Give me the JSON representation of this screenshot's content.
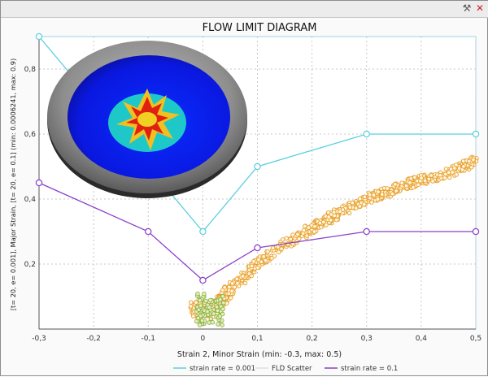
{
  "window": {
    "tools_icon": "tools-icon",
    "close_icon": "close-icon"
  },
  "colors": {
    "line_low": "#5ccfe0",
    "scatter": "#e8a030",
    "line_high": "#8a40c8",
    "grid": "#c8c8c8"
  },
  "chart_data": {
    "type": "line",
    "title": "FLOW LIMIT DIAGRAM",
    "xlabel": "Strain 2, Minor Strain (min: -0.3, max: 0.5)",
    "ylabel": "[t= 20, e= 0.001], Major Strain, [t= 20, e= 0.1] (min: 0.0006241, max: 0.9)",
    "xlim": [
      -0.3,
      0.5
    ],
    "ylim": [
      0,
      0.9
    ],
    "x_ticks": [
      "-0,3",
      "-0,2",
      "-0,1",
      "0",
      "0,1",
      "0,2",
      "0,3",
      "0,4",
      "0,5"
    ],
    "y_ticks": [
      "0,2",
      "0,4",
      "0,6",
      "0,8"
    ],
    "grid": true,
    "legend_position": "bottom",
    "series": [
      {
        "name": "strain rate = 0.001",
        "kind": "line",
        "color": "#5ccfe0",
        "x": [
          -0.3,
          0.0,
          0.1,
          0.3,
          0.5
        ],
        "y": [
          0.9,
          0.3,
          0.5,
          0.6,
          0.6
        ]
      },
      {
        "name": "FLD Scatter",
        "kind": "scatter",
        "color": "#e8a030",
        "band": [
          [
            -0.02,
            0.06
          ],
          [
            0.02,
            0.06
          ],
          [
            0.05,
            0.12
          ],
          [
            0.1,
            0.2
          ],
          [
            0.15,
            0.26
          ],
          [
            0.2,
            0.31
          ],
          [
            0.25,
            0.36
          ],
          [
            0.3,
            0.4
          ],
          [
            0.35,
            0.43
          ],
          [
            0.4,
            0.46
          ],
          [
            0.45,
            0.48
          ],
          [
            0.5,
            0.52
          ]
        ]
      },
      {
        "name": "strain rate = 0.1",
        "kind": "line",
        "color": "#8a40c8",
        "x": [
          -0.3,
          -0.1,
          0.0,
          0.1,
          0.3,
          0.5
        ],
        "y": [
          0.45,
          0.3,
          0.15,
          0.25,
          0.3,
          0.3
        ]
      }
    ]
  }
}
